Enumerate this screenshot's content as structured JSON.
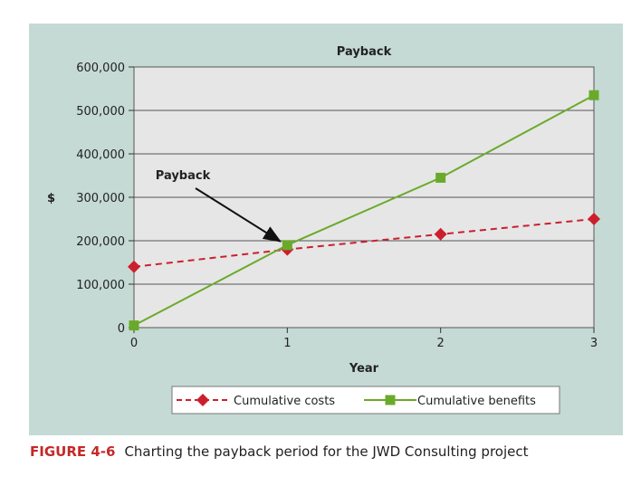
{
  "chart_data": {
    "type": "line",
    "title": "Payback",
    "xlabel": "Year",
    "ylabel": "$",
    "categories": [
      "0",
      "1",
      "2",
      "3"
    ],
    "x": [
      0,
      1,
      2,
      3
    ],
    "ylim": [
      0,
      600000
    ],
    "y_ticks": [
      "0",
      "100,000",
      "200,000",
      "300,000",
      "400,000",
      "500,000",
      "600,000"
    ],
    "y_tick_values": [
      0,
      100000,
      200000,
      300000,
      400000,
      500000,
      600000
    ],
    "grid": "horizontal",
    "legend_position": "bottom",
    "series": [
      {
        "name": "Cumulative costs",
        "values": [
          140000,
          180000,
          215000,
          250000
        ],
        "color": "#cc1f2e",
        "marker": "diamond",
        "line": "dashed"
      },
      {
        "name": "Cumulative benefits",
        "values": [
          5000,
          190000,
          345000,
          535000
        ],
        "color": "#6aaa2a",
        "marker": "square",
        "line": "solid"
      }
    ],
    "annotations": [
      {
        "text": "Payback",
        "x": 1,
        "y": 180000
      }
    ]
  },
  "caption": {
    "figure_label": "FIGURE 4-6",
    "text": "Charting the payback period for the JWD Consulting project"
  },
  "colors": {
    "panel_background": "#c5dad4",
    "plot_background": "#e6e6e6",
    "caption_label": "#c62828"
  }
}
